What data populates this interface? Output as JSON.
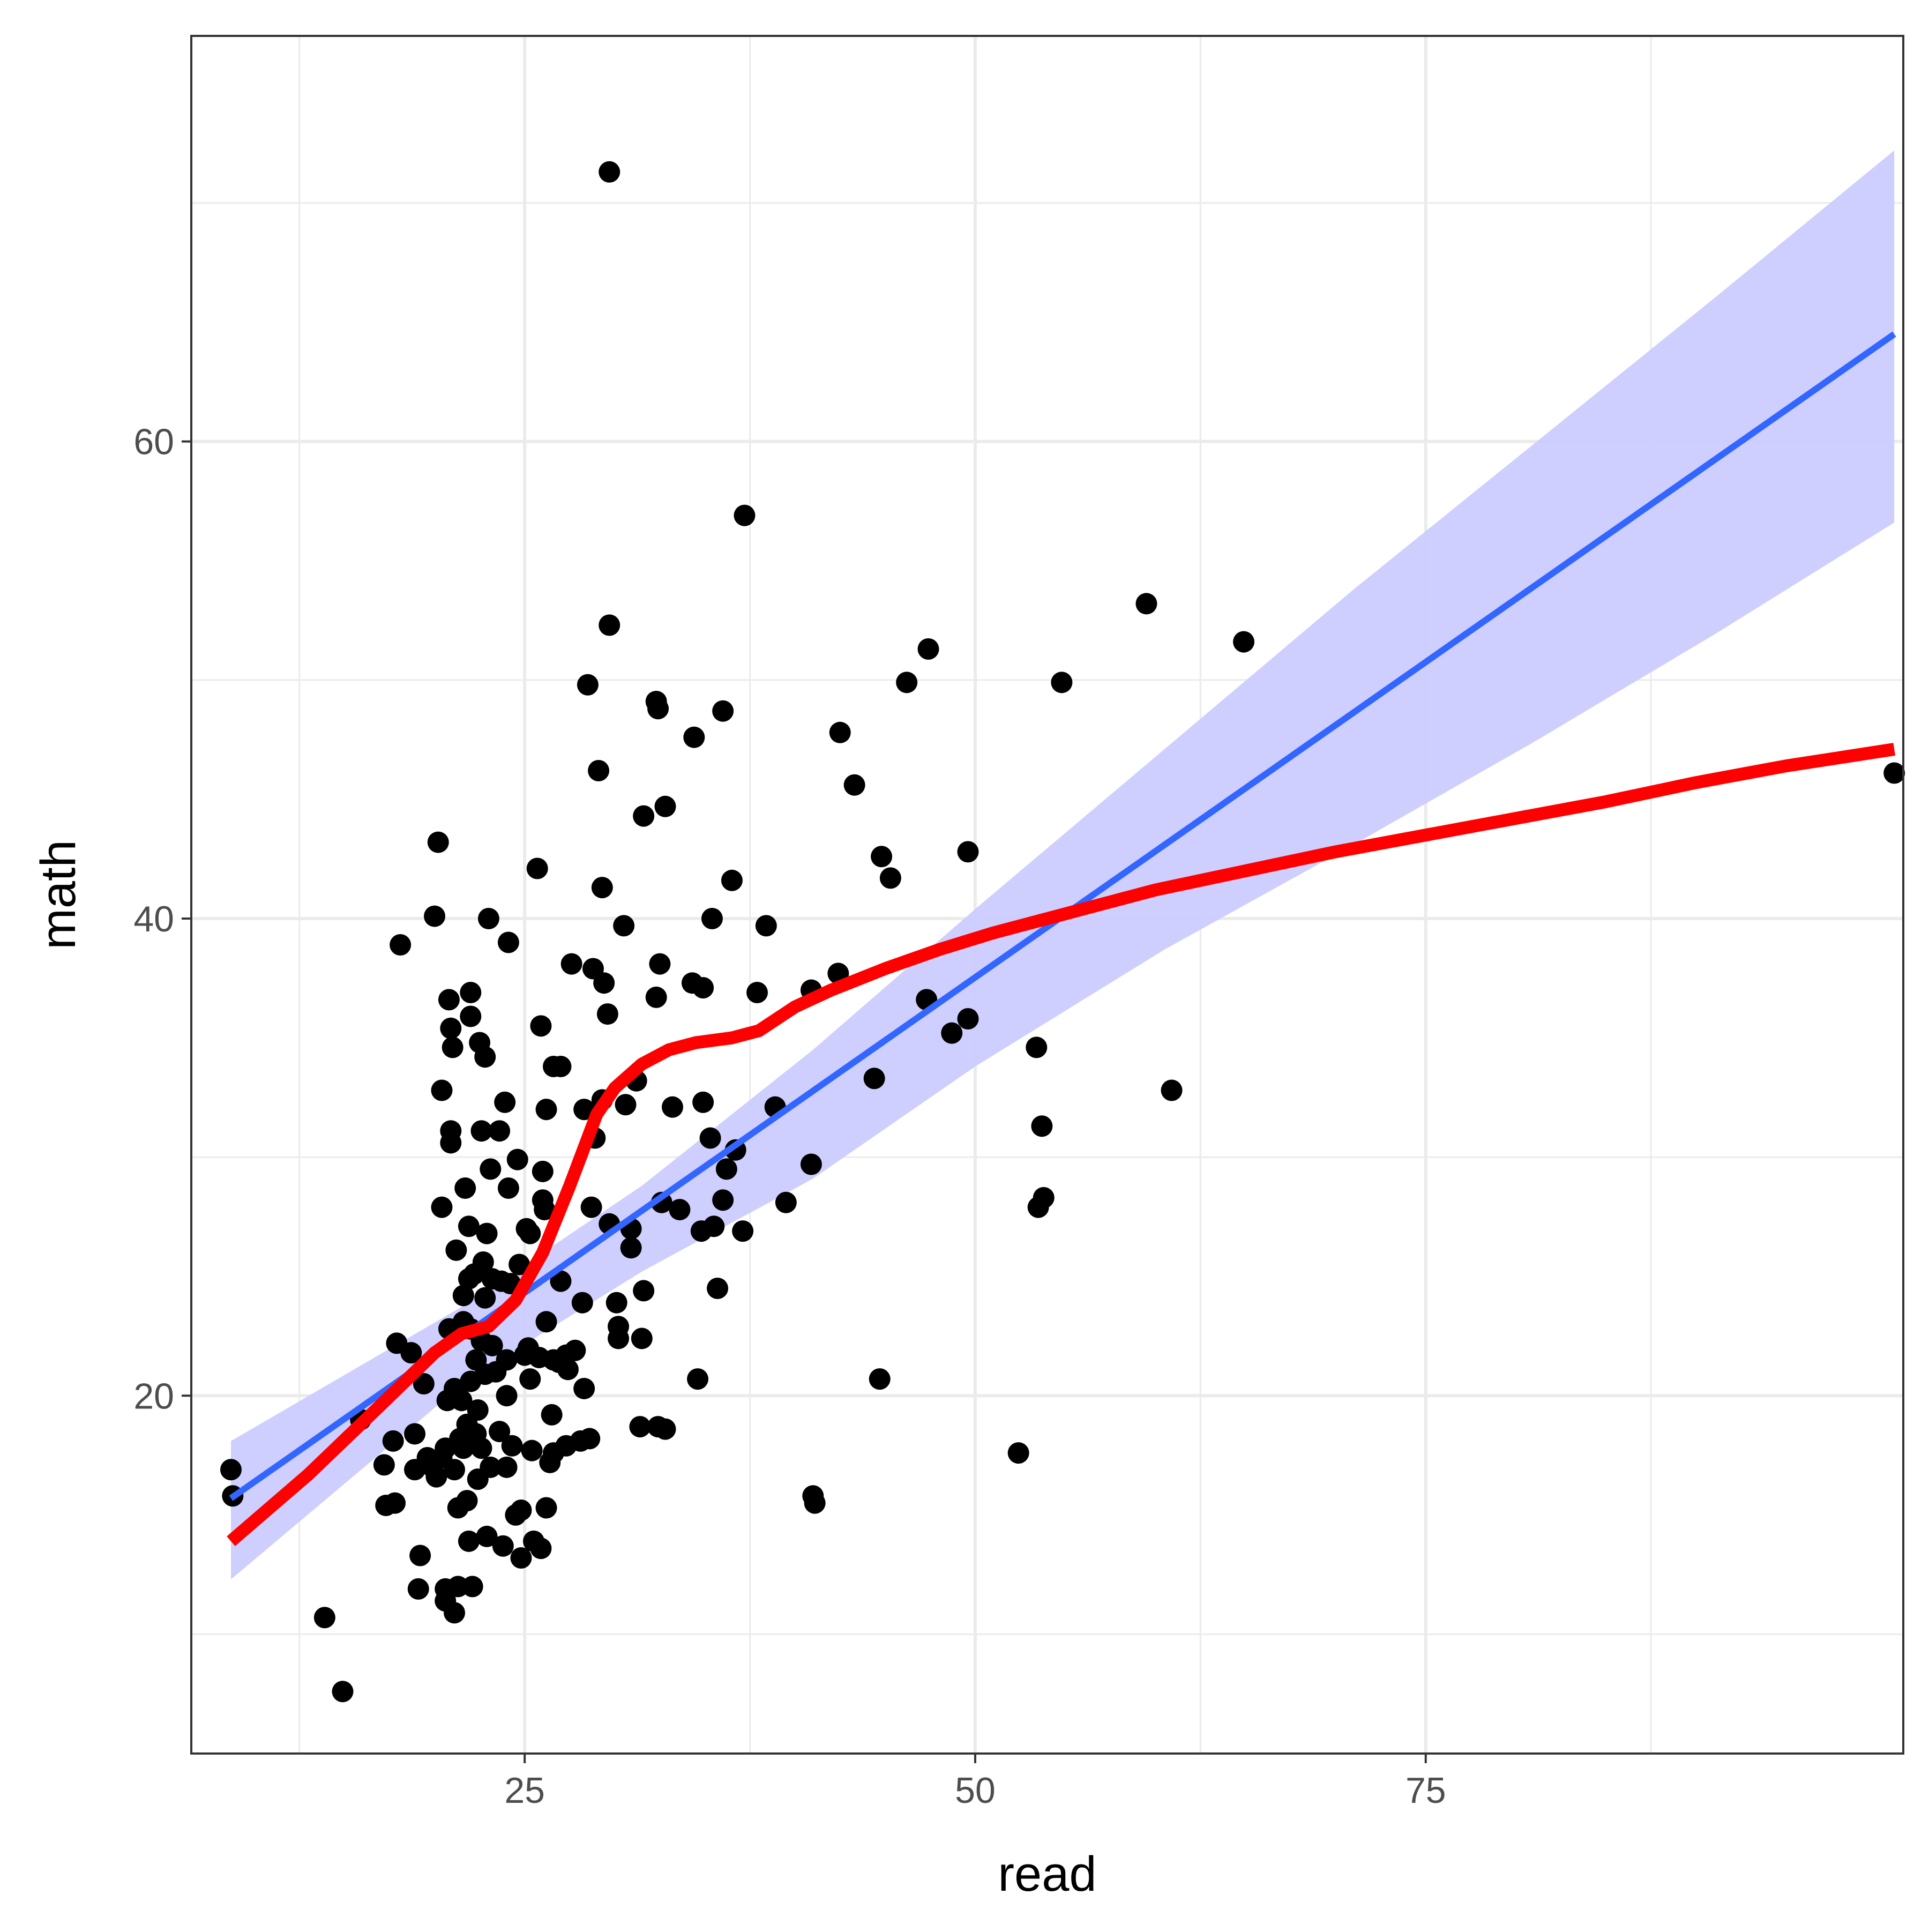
{
  "chart_data": {
    "type": "scatter",
    "title": "",
    "xlabel": "read",
    "ylabel": "math",
    "xlim": [
      6.5,
      101.5
    ],
    "ylim": [
      5,
      77
    ],
    "x_ticks": [
      25,
      50,
      75
    ],
    "x_minor_ticks": [
      12.5,
      37.5,
      62.5,
      87.5
    ],
    "y_ticks": [
      20,
      40,
      60
    ],
    "y_minor_ticks": [
      10,
      30,
      50,
      70
    ],
    "grid": true,
    "legend": "none",
    "colors": {
      "points": "#000000",
      "linear_fit": "#3366FF",
      "ribbon": "#CCCCFF",
      "smooth_fit": "#FF0000",
      "grid": "#EBEBEB",
      "panel_border": "#333333"
    },
    "points": [
      [
        8.7,
        16.9
      ],
      [
        8.8,
        15.8
      ],
      [
        13.9,
        10.7
      ],
      [
        14.9,
        7.6
      ],
      [
        15.9,
        19.0
      ],
      [
        17.2,
        17.1
      ],
      [
        17.3,
        15.4
      ],
      [
        17.7,
        18.1
      ],
      [
        17.8,
        15.5
      ],
      [
        17.9,
        22.2
      ],
      [
        18.1,
        38.9
      ],
      [
        18.7,
        21.8
      ],
      [
        18.9,
        16.9
      ],
      [
        18.9,
        18.4
      ],
      [
        19.1,
        11.9
      ],
      [
        19.2,
        13.3
      ],
      [
        19.4,
        20.5
      ],
      [
        19.6,
        17.4
      ],
      [
        19.9,
        17.0
      ],
      [
        20.0,
        40.1
      ],
      [
        20.1,
        16.6
      ],
      [
        20.2,
        43.2
      ],
      [
        20.4,
        17.4
      ],
      [
        20.4,
        27.9
      ],
      [
        20.4,
        32.8
      ],
      [
        20.6,
        17.8
      ],
      [
        20.6,
        11.9
      ],
      [
        20.6,
        11.4
      ],
      [
        20.7,
        19.8
      ],
      [
        20.8,
        22.8
      ],
      [
        20.8,
        36.6
      ],
      [
        20.9,
        31.1
      ],
      [
        20.9,
        30.6
      ],
      [
        20.9,
        35.4
      ],
      [
        21.0,
        34.6
      ],
      [
        21.1,
        10.9
      ],
      [
        21.1,
        20.3
      ],
      [
        21.1,
        16.9
      ],
      [
        21.2,
        26.1
      ],
      [
        21.2,
        20.0
      ],
      [
        21.3,
        15.3
      ],
      [
        21.3,
        12.0
      ],
      [
        21.4,
        18.2
      ],
      [
        21.5,
        19.8
      ],
      [
        21.6,
        24.2
      ],
      [
        21.6,
        23.1
      ],
      [
        21.6,
        17.8
      ],
      [
        21.7,
        28.7
      ],
      [
        21.8,
        18.8
      ],
      [
        21.8,
        15.6
      ],
      [
        21.9,
        27.1
      ],
      [
        21.9,
        24.9
      ],
      [
        21.9,
        13.9
      ],
      [
        22.0,
        36.9
      ],
      [
        22.0,
        35.9
      ],
      [
        22.0,
        22.8
      ],
      [
        22.0,
        20.6
      ],
      [
        22.1,
        12.0
      ],
      [
        22.2,
        25.1
      ],
      [
        22.3,
        18.4
      ],
      [
        22.3,
        21.5
      ],
      [
        22.4,
        19.4
      ],
      [
        22.4,
        16.5
      ],
      [
        22.5,
        34.8
      ],
      [
        22.6,
        31.1
      ],
      [
        22.6,
        17.8
      ],
      [
        22.6,
        22.3
      ],
      [
        22.7,
        25.6
      ],
      [
        22.8,
        34.2
      ],
      [
        22.8,
        24.1
      ],
      [
        22.8,
        20.9
      ],
      [
        22.9,
        26.8
      ],
      [
        22.9,
        14.1
      ],
      [
        23.0,
        40.0
      ],
      [
        23.1,
        29.5
      ],
      [
        23.1,
        17.0
      ],
      [
        23.2,
        24.9
      ],
      [
        23.2,
        22.1
      ],
      [
        23.4,
        21.0
      ],
      [
        23.6,
        31.1
      ],
      [
        23.6,
        18.5
      ],
      [
        23.7,
        24.8
      ],
      [
        23.8,
        13.7
      ],
      [
        23.9,
        32.3
      ],
      [
        24.0,
        20.0
      ],
      [
        24.0,
        21.5
      ],
      [
        24.0,
        17.0
      ],
      [
        24.1,
        39.0
      ],
      [
        24.1,
        28.7
      ],
      [
        24.2,
        24.7
      ],
      [
        24.3,
        17.9
      ],
      [
        24.5,
        15.0
      ],
      [
        24.6,
        29.9
      ],
      [
        24.7,
        25.5
      ],
      [
        24.8,
        13.2
      ],
      [
        24.8,
        15.2
      ],
      [
        25.0,
        21.7
      ],
      [
        25.1,
        27.0
      ],
      [
        25.2,
        22.0
      ],
      [
        25.3,
        26.8
      ],
      [
        25.3,
        20.7
      ],
      [
        25.4,
        17.7
      ],
      [
        25.5,
        13.9
      ],
      [
        25.7,
        42.1
      ],
      [
        25.8,
        21.6
      ],
      [
        25.9,
        35.5
      ],
      [
        25.9,
        13.6
      ],
      [
        26.0,
        29.4
      ],
      [
        26.0,
        28.2
      ],
      [
        26.1,
        27.8
      ],
      [
        26.2,
        32.0
      ],
      [
        26.2,
        23.1
      ],
      [
        26.2,
        15.3
      ],
      [
        26.4,
        17.2
      ],
      [
        26.5,
        19.2
      ],
      [
        26.6,
        33.8
      ],
      [
        26.6,
        21.5
      ],
      [
        26.6,
        17.6
      ],
      [
        26.9,
        21.4
      ],
      [
        27.0,
        24.8
      ],
      [
        27.0,
        33.8
      ],
      [
        27.3,
        21.7
      ],
      [
        27.3,
        17.9
      ],
      [
        27.4,
        21.1
      ],
      [
        27.6,
        38.1
      ],
      [
        27.8,
        21.9
      ],
      [
        28.1,
        18.1
      ],
      [
        28.2,
        23.9
      ],
      [
        28.3,
        32.0
      ],
      [
        28.3,
        20.3
      ],
      [
        28.5,
        49.8
      ],
      [
        28.6,
        18.2
      ],
      [
        28.7,
        27.9
      ],
      [
        28.8,
        37.9
      ],
      [
        28.9,
        30.8
      ],
      [
        29.1,
        46.2
      ],
      [
        29.3,
        32.4
      ],
      [
        29.3,
        41.3
      ],
      [
        29.4,
        37.3
      ],
      [
        29.6,
        36.0
      ],
      [
        29.7,
        27.2
      ],
      [
        29.7,
        52.3
      ],
      [
        29.7,
        71.3
      ],
      [
        30.1,
        23.9
      ],
      [
        30.2,
        22.4
      ],
      [
        30.2,
        22.9
      ],
      [
        30.5,
        39.7
      ],
      [
        30.6,
        32.2
      ],
      [
        30.9,
        27.0
      ],
      [
        30.9,
        26.2
      ],
      [
        31.2,
        33.2
      ],
      [
        31.4,
        18.7
      ],
      [
        31.5,
        22.4
      ],
      [
        31.6,
        24.4
      ],
      [
        31.6,
        44.3
      ],
      [
        32.3,
        36.7
      ],
      [
        32.3,
        49.1
      ],
      [
        32.4,
        48.8
      ],
      [
        32.4,
        18.7
      ],
      [
        32.5,
        38.1
      ],
      [
        32.6,
        28.1
      ],
      [
        32.8,
        44.7
      ],
      [
        32.8,
        18.6
      ],
      [
        33.2,
        32.1
      ],
      [
        33.6,
        27.8
      ],
      [
        34.3,
        37.3
      ],
      [
        34.4,
        47.6
      ],
      [
        34.6,
        20.7
      ],
      [
        34.8,
        26.9
      ],
      [
        34.9,
        32.3
      ],
      [
        34.9,
        37.1
      ],
      [
        35.3,
        30.8
      ],
      [
        35.4,
        40.0
      ],
      [
        35.5,
        27.1
      ],
      [
        35.7,
        24.5
      ],
      [
        36.0,
        28.2
      ],
      [
        36.0,
        48.7
      ],
      [
        36.2,
        29.5
      ],
      [
        36.5,
        41.6
      ],
      [
        36.7,
        30.3
      ],
      [
        37.1,
        26.9
      ],
      [
        37.2,
        56.9
      ],
      [
        37.9,
        36.9
      ],
      [
        38.4,
        39.7
      ],
      [
        38.9,
        32.1
      ],
      [
        39.5,
        28.1
      ],
      [
        40.9,
        37.0
      ],
      [
        40.9,
        29.7
      ],
      [
        41.0,
        15.8
      ],
      [
        41.1,
        15.5
      ],
      [
        42.4,
        37.7
      ],
      [
        42.5,
        47.8
      ],
      [
        43.3,
        45.6
      ],
      [
        44.4,
        33.3
      ],
      [
        44.7,
        20.7
      ],
      [
        44.8,
        42.6
      ],
      [
        45.3,
        41.7
      ],
      [
        46.2,
        49.9
      ],
      [
        47.3,
        36.6
      ],
      [
        47.4,
        51.3
      ],
      [
        48.7,
        35.2
      ],
      [
        49.6,
        35.8
      ],
      [
        49.6,
        42.8
      ],
      [
        52.4,
        17.6
      ],
      [
        53.4,
        34.6
      ],
      [
        53.5,
        27.9
      ],
      [
        53.7,
        31.3
      ],
      [
        53.8,
        28.3
      ],
      [
        54.8,
        49.9
      ],
      [
        59.5,
        53.2
      ],
      [
        60.9,
        32.8
      ],
      [
        64.9,
        51.6
      ],
      [
        101.0,
        46.1
      ]
    ],
    "series": [
      {
        "fit": "linear",
        "x": [
          8.7,
          101.0
        ],
        "y": [
          15.7,
          64.5
        ],
        "band_lower": [
          12.3,
          56.6
        ],
        "band_upper": [
          18.1,
          72.2
        ],
        "band_x_mid": [
          8.7,
          21.9,
          31.5,
          41.0,
          50.0,
          60.5,
          71.0,
          81.0,
          91.0,
          101.0
        ],
        "band_lower_mid": [
          12.3,
          20.7,
          25.2,
          29.1,
          33.8,
          38.7,
          43.1,
          47.4,
          51.9,
          56.6
        ],
        "band_upper_mid": [
          18.1,
          23.9,
          28.8,
          34.5,
          40.4,
          47.1,
          53.8,
          59.9,
          66.0,
          72.2
        ]
      },
      {
        "fit": "smooth",
        "x": [
          8.7,
          13.0,
          17.0,
          20.0,
          21.5,
          23.0,
          24.5,
          26.0,
          27.5,
          29.0,
          30.0,
          31.5,
          33.0,
          34.5,
          36.5,
          38.0,
          40.0,
          42.0,
          45.0,
          48.0,
          51.0,
          55.0,
          60.0,
          65.0,
          70.0,
          75.0,
          80.0,
          85.0,
          90.0,
          95.0,
          101.0
        ],
        "y": [
          13.9,
          16.7,
          19.6,
          21.8,
          22.6,
          22.9,
          24.0,
          26.0,
          28.8,
          31.8,
          32.9,
          33.9,
          34.5,
          34.8,
          35.0,
          35.3,
          36.3,
          37.0,
          37.9,
          38.7,
          39.4,
          40.2,
          41.2,
          42.0,
          42.8,
          43.5,
          44.2,
          44.9,
          45.7,
          46.4,
          47.1
        ]
      }
    ]
  }
}
